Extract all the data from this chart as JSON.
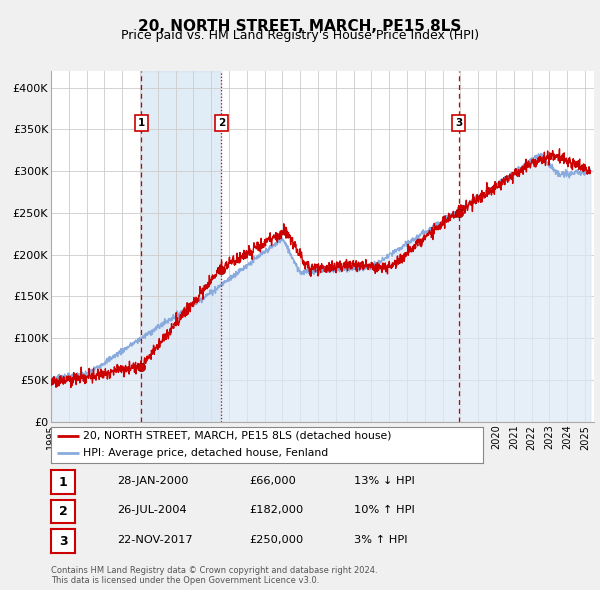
{
  "title": "20, NORTH STREET, MARCH, PE15 8LS",
  "subtitle": "Price paid vs. HM Land Registry's House Price Index (HPI)",
  "title_fontsize": 11,
  "subtitle_fontsize": 9,
  "background_color": "#f0f0f0",
  "plot_bg_color": "#ffffff",
  "grid_color": "#cccccc",
  "ylim": [
    0,
    420000
  ],
  "xlim_start": 1995.0,
  "xlim_end": 2025.5,
  "ytick_labels": [
    "£0",
    "£50K",
    "£100K",
    "£150K",
    "£200K",
    "£250K",
    "£300K",
    "£350K",
    "£400K"
  ],
  "ytick_values": [
    0,
    50000,
    100000,
    150000,
    200000,
    250000,
    300000,
    350000,
    400000
  ],
  "xtick_years": [
    1995,
    1996,
    1997,
    1998,
    1999,
    2000,
    2001,
    2002,
    2003,
    2004,
    2005,
    2006,
    2007,
    2008,
    2009,
    2010,
    2011,
    2012,
    2013,
    2014,
    2015,
    2016,
    2017,
    2018,
    2019,
    2020,
    2021,
    2022,
    2023,
    2024,
    2025
  ],
  "sale_color": "#cc0000",
  "hpi_line_color": "#88aadd",
  "hpi_fill_color": "#dce8f5",
  "annotation_box_color": "#cc0000",
  "sale_dates": [
    2000.08,
    2004.57,
    2017.9
  ],
  "sale_prices": [
    66000,
    182000,
    250000
  ],
  "sale_labels": [
    "1",
    "2",
    "3"
  ],
  "vline_styles": [
    "dashed",
    "dotted",
    "dashed"
  ],
  "vline_color": "#cc0000",
  "legend_entries": [
    "20, NORTH STREET, MARCH, PE15 8LS (detached house)",
    "HPI: Average price, detached house, Fenland"
  ],
  "table_rows": [
    {
      "num": "1",
      "date": "28-JAN-2000",
      "price": "£66,000",
      "hpi": "13% ↓ HPI"
    },
    {
      "num": "2",
      "date": "26-JUL-2004",
      "price": "£182,000",
      "hpi": "10% ↑ HPI"
    },
    {
      "num": "3",
      "date": "22-NOV-2017",
      "price": "£250,000",
      "hpi": "3% ↑ HPI"
    }
  ],
  "footer_text": "Contains HM Land Registry data © Crown copyright and database right 2024.\nThis data is licensed under the Open Government Licence v3.0.",
  "shaded_span": [
    2000.08,
    2004.57
  ]
}
